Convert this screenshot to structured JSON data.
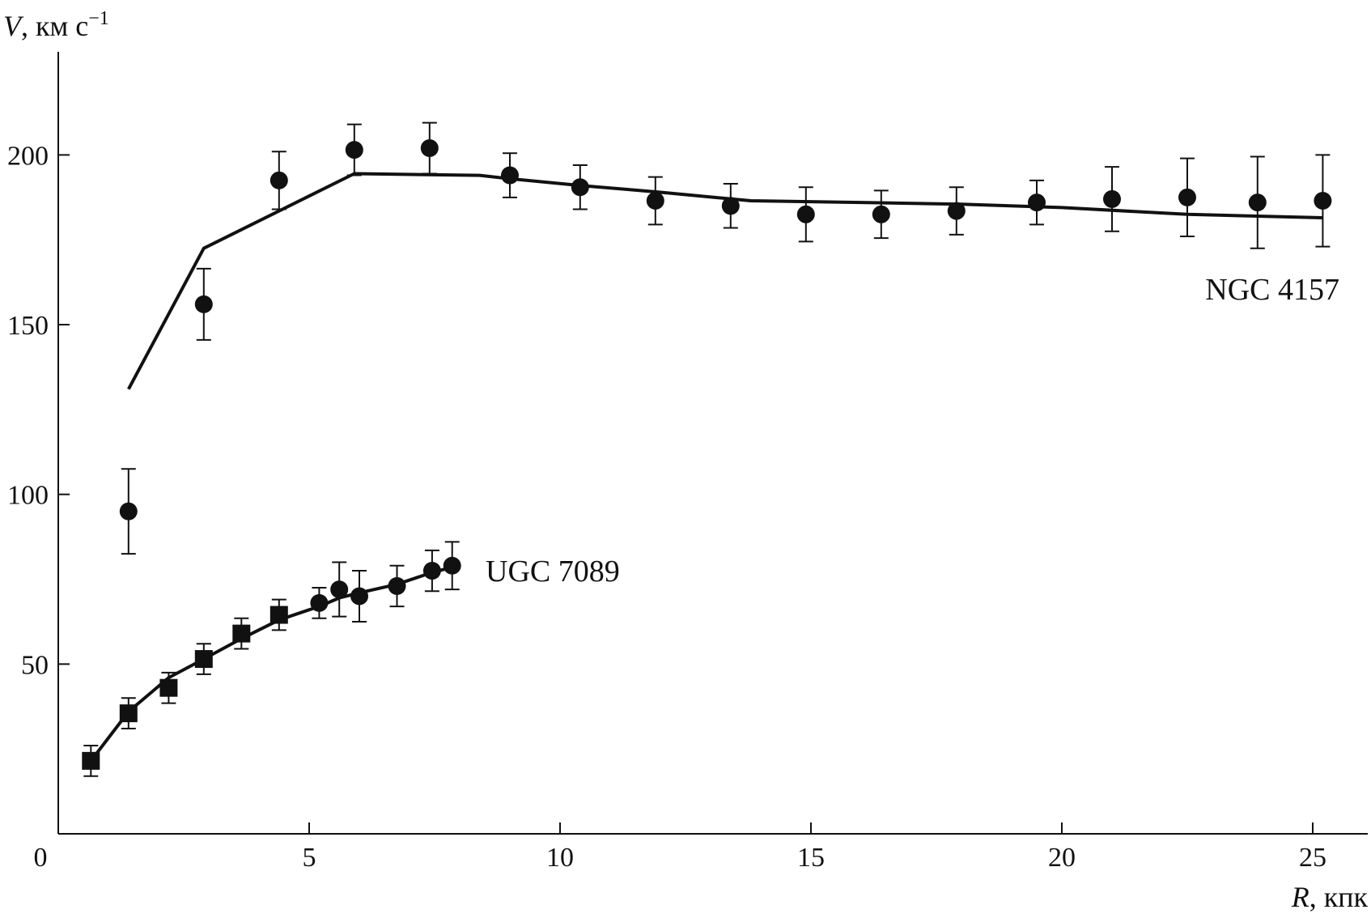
{
  "chart_data": {
    "type": "scatter",
    "xlabel": {
      "symbol": "R",
      "unit": ", кпк"
    },
    "ylabel": {
      "symbol": "V",
      "unit": ", км с",
      "exponent": "−1"
    },
    "xlim": [
      0,
      26.3
    ],
    "ylim": [
      0,
      232
    ],
    "xticks": [
      "0",
      "5",
      "10",
      "15",
      "20",
      "25"
    ],
    "xtick_values": [
      0,
      5,
      10,
      15,
      20,
      25
    ],
    "yticks": [
      "50",
      "100",
      "150",
      "200"
    ],
    "ytick_values": [
      50,
      100,
      150,
      200
    ],
    "grid": false,
    "series": [
      {
        "name": "NGC 4157",
        "marker": "circle",
        "points": [
          {
            "x": 1.4,
            "y": 95,
            "err": 12.5
          },
          {
            "x": 2.9,
            "y": 156,
            "err": 10.5
          },
          {
            "x": 4.4,
            "y": 192.5,
            "err": 8.5
          },
          {
            "x": 5.9,
            "y": 201.5,
            "err": 7.5
          },
          {
            "x": 7.4,
            "y": 202,
            "err": 7.5
          },
          {
            "x": 9.0,
            "y": 194,
            "err": 6.5
          },
          {
            "x": 10.4,
            "y": 190.5,
            "err": 6.5
          },
          {
            "x": 11.9,
            "y": 186.5,
            "err": 7
          },
          {
            "x": 13.4,
            "y": 185,
            "err": 6.5
          },
          {
            "x": 14.9,
            "y": 182.5,
            "err": 8
          },
          {
            "x": 16.4,
            "y": 182.5,
            "err": 7
          },
          {
            "x": 17.9,
            "y": 183.5,
            "err": 7
          },
          {
            "x": 19.5,
            "y": 186,
            "err": 6.5
          },
          {
            "x": 21.0,
            "y": 187,
            "err": 9.5
          },
          {
            "x": 22.5,
            "y": 187.5,
            "err": 11.5
          },
          {
            "x": 23.9,
            "y": 186,
            "err": 13.5
          },
          {
            "x": 25.2,
            "y": 186.5,
            "err": 13.5
          }
        ],
        "model": {
          "x": [
            1.4,
            2.9,
            5.9,
            8.4,
            9.0,
            10.4,
            12.0,
            13.8,
            16.0,
            18.0,
            20.0,
            22.5,
            25.2
          ],
          "y": [
            131,
            172.5,
            194.5,
            194,
            193,
            191,
            189,
            186.5,
            186,
            185.5,
            184.5,
            182.5,
            181.5
          ]
        }
      },
      {
        "name": "UGC 7089",
        "markers": "square / circle",
        "points": [
          {
            "x": 0.65,
            "y": 21.5,
            "err": 4.5,
            "marker": "square"
          },
          {
            "x": 1.4,
            "y": 35.5,
            "err": 4.5,
            "marker": "square"
          },
          {
            "x": 2.2,
            "y": 43,
            "err": 4.5,
            "marker": "square"
          },
          {
            "x": 2.9,
            "y": 51.5,
            "err": 4.5,
            "marker": "square"
          },
          {
            "x": 3.65,
            "y": 59,
            "err": 4.5,
            "marker": "square"
          },
          {
            "x": 4.4,
            "y": 64.5,
            "err": 4.5,
            "marker": "square"
          },
          {
            "x": 5.2,
            "y": 68,
            "err": 4.5,
            "marker": "circle"
          },
          {
            "x": 5.6,
            "y": 72,
            "err": 8,
            "marker": "circle"
          },
          {
            "x": 6.0,
            "y": 70,
            "err": 7.5,
            "marker": "circle"
          },
          {
            "x": 6.75,
            "y": 73,
            "err": 6,
            "marker": "circle"
          },
          {
            "x": 7.45,
            "y": 77.5,
            "err": 6,
            "marker": "circle"
          },
          {
            "x": 7.85,
            "y": 79,
            "err": 7,
            "marker": "circle"
          }
        ],
        "model": {
          "x": [
            0.65,
            1.4,
            2.2,
            2.9,
            3.65,
            4.4,
            5.2,
            5.6,
            6.0,
            6.75,
            7.45,
            7.85
          ],
          "y": [
            21.5,
            36,
            46,
            51.5,
            57.5,
            63,
            67,
            69.5,
            71,
            73.5,
            77,
            78.5
          ]
        }
      }
    ]
  }
}
